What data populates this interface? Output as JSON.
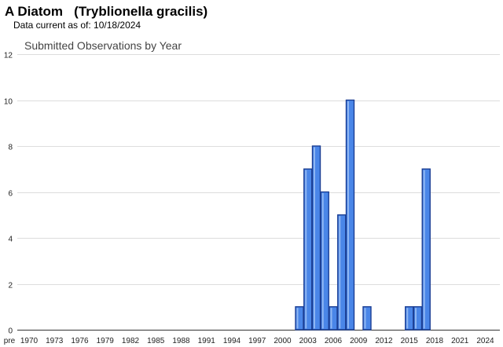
{
  "header": {
    "title": "A Diatom   (Tryblionella gracilis)",
    "subtitle": "Data current as of: 10/18/2024"
  },
  "colors": {
    "bar_fill": "#4a86e8",
    "bar_stroke": "#1c3f94",
    "grid": "#dddddd"
  },
  "chart_data": {
    "type": "bar",
    "title": "Submitted Observations by Year",
    "xlabel": "",
    "ylabel": "",
    "ylim": [
      0,
      12
    ],
    "y_ticks": [
      0,
      2,
      4,
      6,
      8,
      10,
      12
    ],
    "x_tick_labels": [
      "pre",
      "1970",
      "1973",
      "1976",
      "1979",
      "1982",
      "1985",
      "1988",
      "1991",
      "1994",
      "1997",
      "2000",
      "2003",
      "2006",
      "2009",
      "2012",
      "2015",
      "2018",
      "2021",
      "2024"
    ],
    "grid": true,
    "legend": "none",
    "categories": [
      "2002",
      "2003",
      "2004",
      "2005",
      "2006",
      "2007",
      "2008",
      "2010",
      "2015",
      "2016",
      "2017"
    ],
    "values": [
      1,
      7,
      8,
      6,
      1,
      5,
      10,
      1,
      1,
      1,
      7
    ]
  }
}
